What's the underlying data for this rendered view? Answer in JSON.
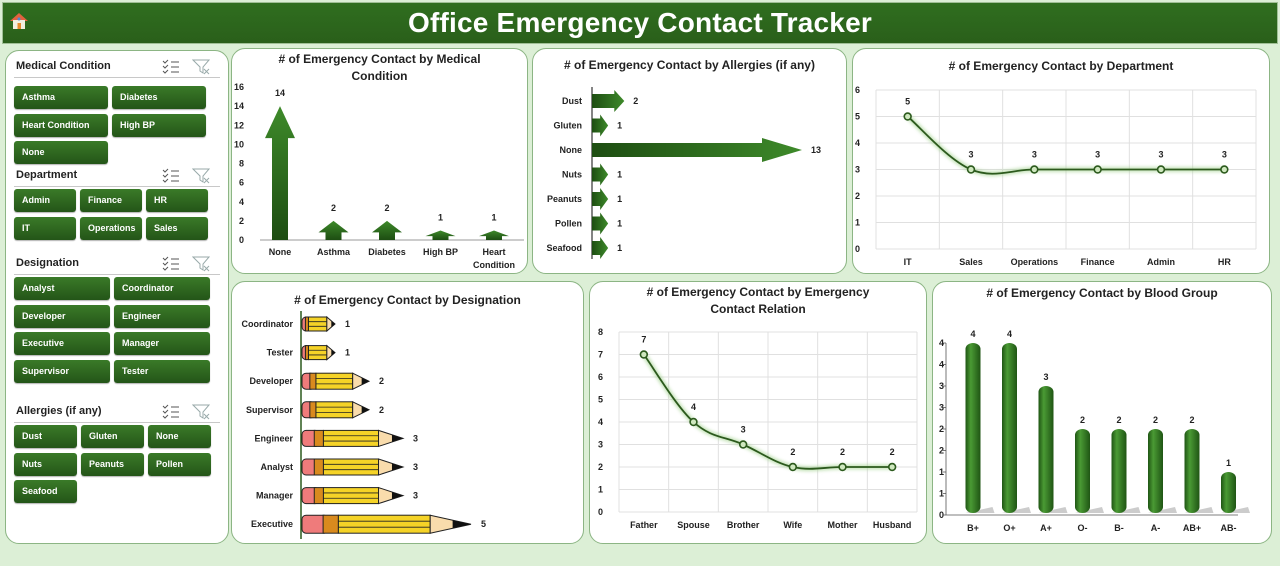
{
  "header": {
    "title": "Office Emergency Contact Tracker",
    "home_icon": "home-icon"
  },
  "slicers": [
    {
      "title": "Medical Condition",
      "items": [
        "Asthma",
        "Diabetes",
        "Heart Condition",
        "High BP",
        "None"
      ]
    },
    {
      "title": "Department",
      "items": [
        "Admin",
        "Finance",
        "HR",
        "IT",
        "Operations",
        "Sales"
      ]
    },
    {
      "title": "Designation",
      "items": [
        "Analyst",
        "Coordinator",
        "Developer",
        "Engineer",
        "Executive",
        "Manager",
        "Supervisor",
        "Tester"
      ]
    },
    {
      "title": "Allergies (if any)",
      "items": [
        "Dust",
        "Gluten",
        "None",
        "Nuts",
        "Peanuts",
        "Pollen",
        "Seafood"
      ]
    }
  ],
  "colors": {
    "accent": "#2f6e1f",
    "button": "#2d6a1f",
    "background": "#dcefd6",
    "pencil_body": "#f5d327",
    "pencil_eraser": "#ef7b7b",
    "pencil_band": "#d98a1e",
    "pencil_wood": "#f9dcac"
  },
  "chart_data": [
    {
      "id": "medical",
      "type": "bar",
      "title": "# of Emergency Contact  by Medical Condition",
      "categories": [
        "None",
        "Asthma",
        "Diabetes",
        "High BP",
        "Heart Condition"
      ],
      "values": [
        14,
        2,
        2,
        1,
        1
      ],
      "ylim": [
        0,
        16
      ],
      "yticks": [
        0,
        2,
        4,
        6,
        8,
        10,
        12,
        14,
        16
      ],
      "grid": false,
      "shape": "up-arrow"
    },
    {
      "id": "allergies",
      "type": "bar",
      "orientation": "horizontal",
      "title": "# of Emergency Contact  by Allergies (if any)",
      "categories": [
        "Dust",
        "Gluten",
        "None",
        "Nuts",
        "Peanuts",
        "Pollen",
        "Seafood"
      ],
      "values": [
        2,
        1,
        13,
        1,
        1,
        1,
        1
      ],
      "grid": false,
      "shape": "right-arrow"
    },
    {
      "id": "department",
      "type": "line",
      "title": "# of Emergency Contact  by Department",
      "categories": [
        "IT",
        "Sales",
        "Operations",
        "Finance",
        "Admin",
        "HR"
      ],
      "values": [
        5,
        3,
        3,
        3,
        3,
        3
      ],
      "ylim": [
        0,
        6
      ],
      "yticks": [
        0,
        1,
        2,
        3,
        4,
        5,
        6
      ],
      "grid": true,
      "smooth": true
    },
    {
      "id": "designation",
      "type": "bar",
      "orientation": "horizontal",
      "title": "# of Emergency Contact  by Designation",
      "categories": [
        "Coordinator",
        "Tester",
        "Developer",
        "Supervisor",
        "Engineer",
        "Analyst",
        "Manager",
        "Executive"
      ],
      "values": [
        1,
        1,
        2,
        2,
        3,
        3,
        3,
        5
      ],
      "grid": false,
      "shape": "pencil"
    },
    {
      "id": "relation",
      "type": "line",
      "title": "# of Emergency Contact  by Emergency Contact Relation",
      "categories": [
        "Father",
        "Spouse",
        "Brother",
        "Wife",
        "Mother",
        "Husband"
      ],
      "values": [
        7,
        4,
        3,
        2,
        2,
        2
      ],
      "ylim": [
        0,
        8
      ],
      "yticks": [
        0,
        1,
        2,
        3,
        4,
        5,
        6,
        7,
        8
      ],
      "grid": true,
      "smooth": true
    },
    {
      "id": "blood",
      "type": "bar",
      "title": "# of Emergency Contact  by Blood Group",
      "categories": [
        "B+",
        "O+",
        "A+",
        "O-",
        "B-",
        "A-",
        "AB+",
        "AB-"
      ],
      "values": [
        4,
        4,
        3,
        2,
        2,
        2,
        2,
        1
      ],
      "ylim": [
        0,
        4
      ],
      "ytick_labels": [
        "0",
        "1",
        "1",
        "2",
        "2",
        "3",
        "3",
        "4",
        "4"
      ],
      "grid": false,
      "shape": "cylinder"
    }
  ]
}
